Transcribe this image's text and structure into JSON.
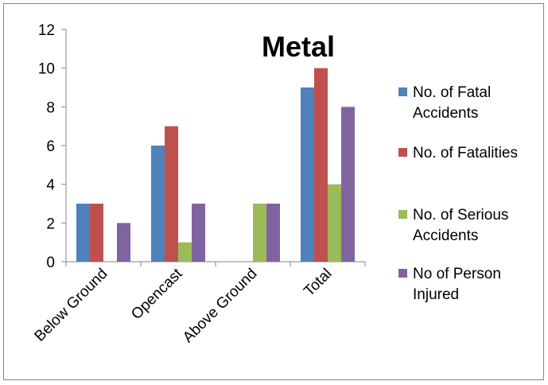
{
  "chart_data": {
    "type": "bar",
    "title": "Metal",
    "xlabel": "",
    "ylabel": "",
    "categories": [
      "Below Ground",
      "Opencast",
      "Above Ground",
      "Total"
    ],
    "series": [
      {
        "name": "No. of Fatal Accidents",
        "color": "#4f81bd",
        "values": [
          3,
          6,
          0,
          9
        ]
      },
      {
        "name": "No. of Fatalities",
        "color": "#c0504d",
        "values": [
          3,
          7,
          0,
          10
        ]
      },
      {
        "name": "No. of Serious Accidents",
        "color": "#9bbb59",
        "values": [
          0,
          1,
          3,
          4
        ]
      },
      {
        "name": "No of Person Injured",
        "color": "#8064a2",
        "values": [
          2,
          3,
          3,
          8
        ]
      }
    ],
    "ylim": [
      0,
      12
    ],
    "yticks": [
      0,
      2,
      4,
      6,
      8,
      10,
      12
    ],
    "legend_position": "right",
    "grid": false
  }
}
